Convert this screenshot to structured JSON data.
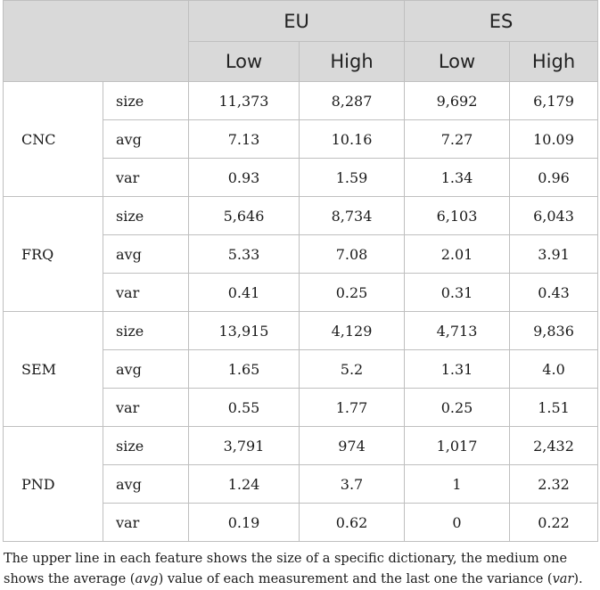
{
  "header": {
    "groups": [
      "EU",
      "ES"
    ],
    "subcolumns": [
      "Low",
      "High",
      "Low",
      "High"
    ]
  },
  "features": [
    {
      "name": "CNC",
      "rows": [
        {
          "measure": "size",
          "values": [
            "11,373",
            "8,287",
            "9,692",
            "6,179"
          ]
        },
        {
          "measure": "avg",
          "values": [
            "7.13",
            "10.16",
            "7.27",
            "10.09"
          ]
        },
        {
          "measure": "var",
          "values": [
            "0.93",
            "1.59",
            "1.34",
            "0.96"
          ]
        }
      ]
    },
    {
      "name": "FRQ",
      "rows": [
        {
          "measure": "size",
          "values": [
            "5,646",
            "8,734",
            "6,103",
            "6,043"
          ]
        },
        {
          "measure": "avg",
          "values": [
            "5.33",
            "7.08",
            "2.01",
            "3.91"
          ]
        },
        {
          "measure": "var",
          "values": [
            "0.41",
            "0.25",
            "0.31",
            "0.43"
          ]
        }
      ]
    },
    {
      "name": "SEM",
      "rows": [
        {
          "measure": "size",
          "values": [
            "13,915",
            "4,129",
            "4,713",
            "9,836"
          ]
        },
        {
          "measure": "avg",
          "values": [
            "1.65",
            "5.2",
            "1.31",
            "4.0"
          ]
        },
        {
          "measure": "var",
          "values": [
            "0.55",
            "1.77",
            "0.25",
            "1.51"
          ]
        }
      ]
    },
    {
      "name": "PND",
      "rows": [
        {
          "measure": "size",
          "values": [
            "3,791",
            "974",
            "1,017",
            "2,432"
          ]
        },
        {
          "measure": "avg",
          "values": [
            "1.24",
            "3.7",
            "1",
            "2.32"
          ]
        },
        {
          "measure": "var",
          "values": [
            "0.19",
            "0.62",
            "0",
            "0.22"
          ]
        }
      ]
    }
  ],
  "caption": {
    "part1": "The upper line in each feature shows the size of a specific dictionary, the medium one shows the average (",
    "avg_term": "avg",
    "part2": ") value of each measurement and the last one the variance (",
    "var_term": "var",
    "part3": ")."
  }
}
